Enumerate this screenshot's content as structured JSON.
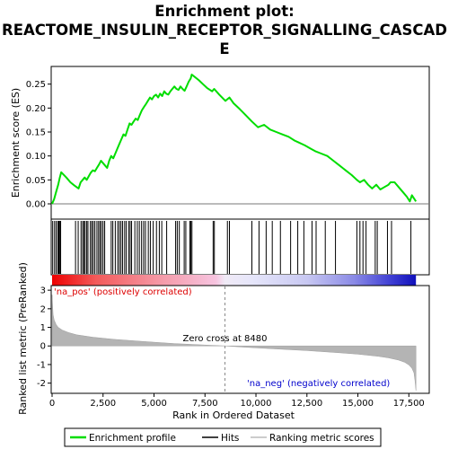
{
  "title_line1": "Enrichment plot:",
  "title_line2": "REACTOME_INSULIN_RECEPTOR_SIGNALLING_CASCAD",
  "title_line3": "E",
  "chart_data": {
    "type": "line",
    "x_domain": [
      0,
      18500
    ],
    "x_max_rank": 17850,
    "x_ticks": [
      0,
      2500,
      5000,
      7500,
      10000,
      12500,
      15000,
      17500
    ],
    "x_tick_labels": [
      "0",
      "2,500",
      "5,000",
      "7,500",
      "10,000",
      "12,500",
      "15,000",
      "17,500"
    ],
    "xlabel": "Rank in Ordered Dataset",
    "es_panel": {
      "ylabel": "Enrichment score (ES)",
      "ylim": [
        -0.03,
        0.285
      ],
      "y_ticks": [
        0.0,
        0.05,
        0.1,
        0.15,
        0.2,
        0.25
      ],
      "y_tick_labels": [
        "0.00",
        "0.05",
        "0.10",
        "0.15",
        "0.20",
        "0.25"
      ],
      "color": "#00dd00",
      "series_name": "Enrichment profile",
      "x": [
        0,
        100,
        200,
        300,
        380,
        450,
        700,
        900,
        1100,
        1300,
        1400,
        1500,
        1600,
        1700,
        1800,
        1900,
        2000,
        2100,
        2200,
        2300,
        2400,
        2500,
        2600,
        2700,
        2800,
        2900,
        3000,
        3100,
        3200,
        3300,
        3400,
        3500,
        3600,
        3700,
        3800,
        3900,
        4000,
        4100,
        4200,
        4300,
        4400,
        4500,
        4600,
        4700,
        4800,
        4900,
        5000,
        5100,
        5200,
        5300,
        5400,
        5500,
        5600,
        5700,
        5800,
        5900,
        6000,
        6100,
        6200,
        6300,
        6400,
        6500,
        6600,
        6700,
        6800,
        6850,
        7000,
        7200,
        7400,
        7600,
        7850,
        7950,
        8200,
        8500,
        8700,
        8900,
        9200,
        9500,
        9800,
        10100,
        10400,
        10700,
        11000,
        11300,
        11600,
        11900,
        12100,
        12400,
        12700,
        12900,
        13200,
        13500,
        13800,
        14100,
        14400,
        14700,
        14950,
        15100,
        15300,
        15500,
        15700,
        15900,
        16100,
        16300,
        16500,
        16600,
        16800,
        17000,
        17200,
        17400,
        17550,
        17650,
        17850
      ],
      "y": [
        0.0,
        0.01,
        0.025,
        0.04,
        0.055,
        0.066,
        0.055,
        0.045,
        0.038,
        0.032,
        0.045,
        0.05,
        0.055,
        0.05,
        0.058,
        0.065,
        0.07,
        0.068,
        0.075,
        0.082,
        0.09,
        0.085,
        0.08,
        0.075,
        0.09,
        0.1,
        0.095,
        0.105,
        0.115,
        0.125,
        0.135,
        0.145,
        0.142,
        0.155,
        0.168,
        0.165,
        0.172,
        0.178,
        0.175,
        0.185,
        0.195,
        0.202,
        0.208,
        0.215,
        0.222,
        0.218,
        0.225,
        0.228,
        0.222,
        0.23,
        0.225,
        0.235,
        0.23,
        0.228,
        0.235,
        0.24,
        0.245,
        0.24,
        0.238,
        0.245,
        0.24,
        0.236,
        0.245,
        0.255,
        0.262,
        0.27,
        0.265,
        0.258,
        0.25,
        0.242,
        0.235,
        0.24,
        0.228,
        0.215,
        0.222,
        0.21,
        0.198,
        0.185,
        0.172,
        0.16,
        0.165,
        0.155,
        0.15,
        0.145,
        0.14,
        0.132,
        0.128,
        0.122,
        0.115,
        0.11,
        0.105,
        0.1,
        0.09,
        0.08,
        0.07,
        0.06,
        0.05,
        0.045,
        0.05,
        0.04,
        0.032,
        0.04,
        0.03,
        0.035,
        0.04,
        0.045,
        0.045,
        0.035,
        0.025,
        0.015,
        0.005,
        0.018,
        0.005
      ]
    },
    "hits": [
      30,
      120,
      200,
      280,
      330,
      380,
      420,
      1150,
      1280,
      1420,
      1500,
      1560,
      1620,
      1700,
      1760,
      1880,
      1950,
      2020,
      2100,
      2200,
      2280,
      2350,
      2420,
      2500,
      2580,
      2900,
      2980,
      3100,
      3220,
      3300,
      3380,
      3460,
      3560,
      3640,
      3760,
      3830,
      3900,
      4060,
      4180,
      4280,
      4390,
      4490,
      4580,
      4720,
      4820,
      4960,
      5120,
      5260,
      5380,
      5620,
      6060,
      6140,
      6240,
      6480,
      6560,
      6760,
      6800,
      6860,
      7900,
      7960,
      8600,
      8700,
      9800,
      10150,
      10500,
      10800,
      11200,
      11700,
      12050,
      12350,
      12750,
      12950,
      13400,
      13900,
      14950,
      15100,
      15250,
      15400,
      15850,
      15950,
      16450,
      16650,
      17600
    ],
    "ranked_metric_panel": {
      "ylabel": "Ranked list metric (PreRanked)",
      "ylim": [
        -2.5,
        3.2
      ],
      "y_ticks": [
        -2,
        -1,
        0,
        1,
        2,
        3
      ],
      "y_tick_labels": [
        "-2",
        "-1",
        "0",
        "1",
        "2",
        "3"
      ],
      "x": [
        0,
        50,
        100,
        200,
        300,
        500,
        800,
        1200,
        2000,
        3000,
        4500,
        6000,
        7500,
        8480,
        9500,
        11000,
        12500,
        14000,
        15000,
        16000,
        16500,
        17000,
        17300,
        17500,
        17650,
        17750,
        17800,
        17850
      ],
      "y": [
        2.75,
        1.7,
        1.4,
        1.15,
        1.0,
        0.85,
        0.72,
        0.6,
        0.47,
        0.36,
        0.24,
        0.13,
        0.05,
        0.0,
        -0.07,
        -0.16,
        -0.25,
        -0.36,
        -0.44,
        -0.56,
        -0.64,
        -0.76,
        -0.88,
        -1.02,
        -1.2,
        -1.45,
        -1.85,
        -2.4
      ],
      "zero_cross": 8480,
      "zero_cross_label": "Zero cross at 8480",
      "pos_label": "'na_pos' (positively correlated)",
      "neg_label": "'na_neg' (negatively correlated)",
      "pos_color": "#dd0000",
      "neg_color": "#0000cc"
    },
    "legend": {
      "placement": "bottom",
      "items": [
        {
          "label": "Enrichment profile",
          "color": "#00dd00",
          "kind": "line"
        },
        {
          "label": "Hits",
          "color": "#000000",
          "kind": "line"
        },
        {
          "label": "Ranking metric scores",
          "color": "#bbbbbb",
          "kind": "line"
        }
      ]
    }
  }
}
